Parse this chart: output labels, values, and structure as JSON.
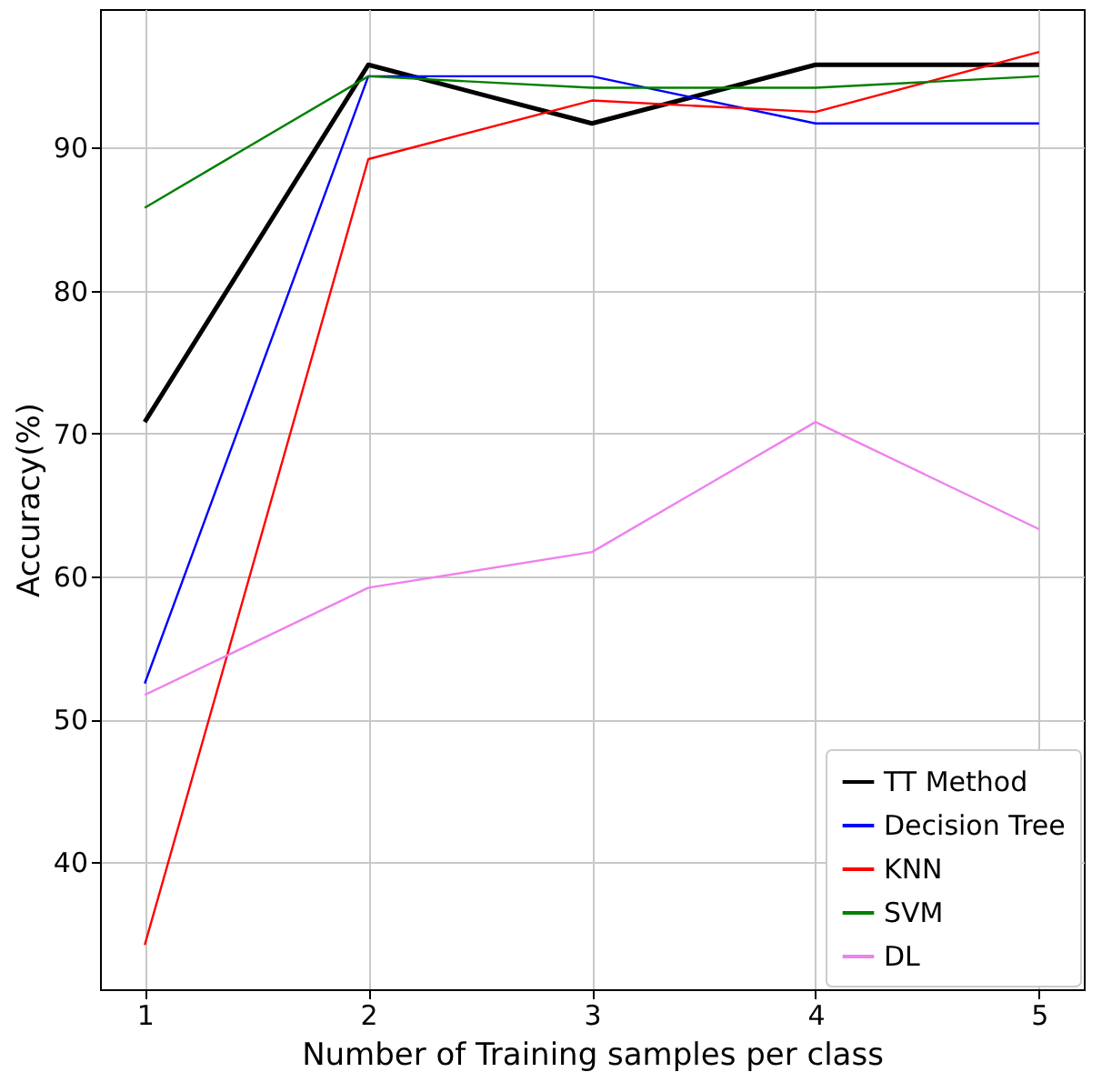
{
  "chart_data": {
    "type": "line",
    "xlabel": "Number of Training samples per class",
    "ylabel": "Accuracy(%)",
    "x": [
      1,
      2,
      3,
      4,
      5
    ],
    "series": [
      {
        "name": "TT Method",
        "color": "#000000",
        "values": [
          70.8,
          95.8,
          91.7,
          95.8,
          95.8
        ]
      },
      {
        "name": "Decision Tree",
        "color": "#0000ff",
        "values": [
          52.5,
          95.0,
          95.0,
          91.7,
          91.7
        ]
      },
      {
        "name": "KNN",
        "color": "#ff0000",
        "values": [
          34.2,
          89.2,
          93.3,
          92.5,
          96.7
        ]
      },
      {
        "name": "SVM",
        "color": "#008000",
        "values": [
          85.8,
          95.0,
          94.2,
          94.2,
          95.0
        ]
      },
      {
        "name": "DL",
        "color": "#ee82ee",
        "values": [
          51.7,
          59.2,
          61.7,
          70.8,
          63.3
        ]
      }
    ],
    "xlim": [
      0.8,
      5.2
    ],
    "xticks": [
      1,
      2,
      3,
      4,
      5
    ],
    "ylim": [
      31.1,
      99.7
    ],
    "yticks": [
      40,
      50,
      60,
      70,
      80,
      90
    ],
    "grid": true,
    "legend": "bottom right",
    "marker": "none",
    "line_style": "solid"
  }
}
